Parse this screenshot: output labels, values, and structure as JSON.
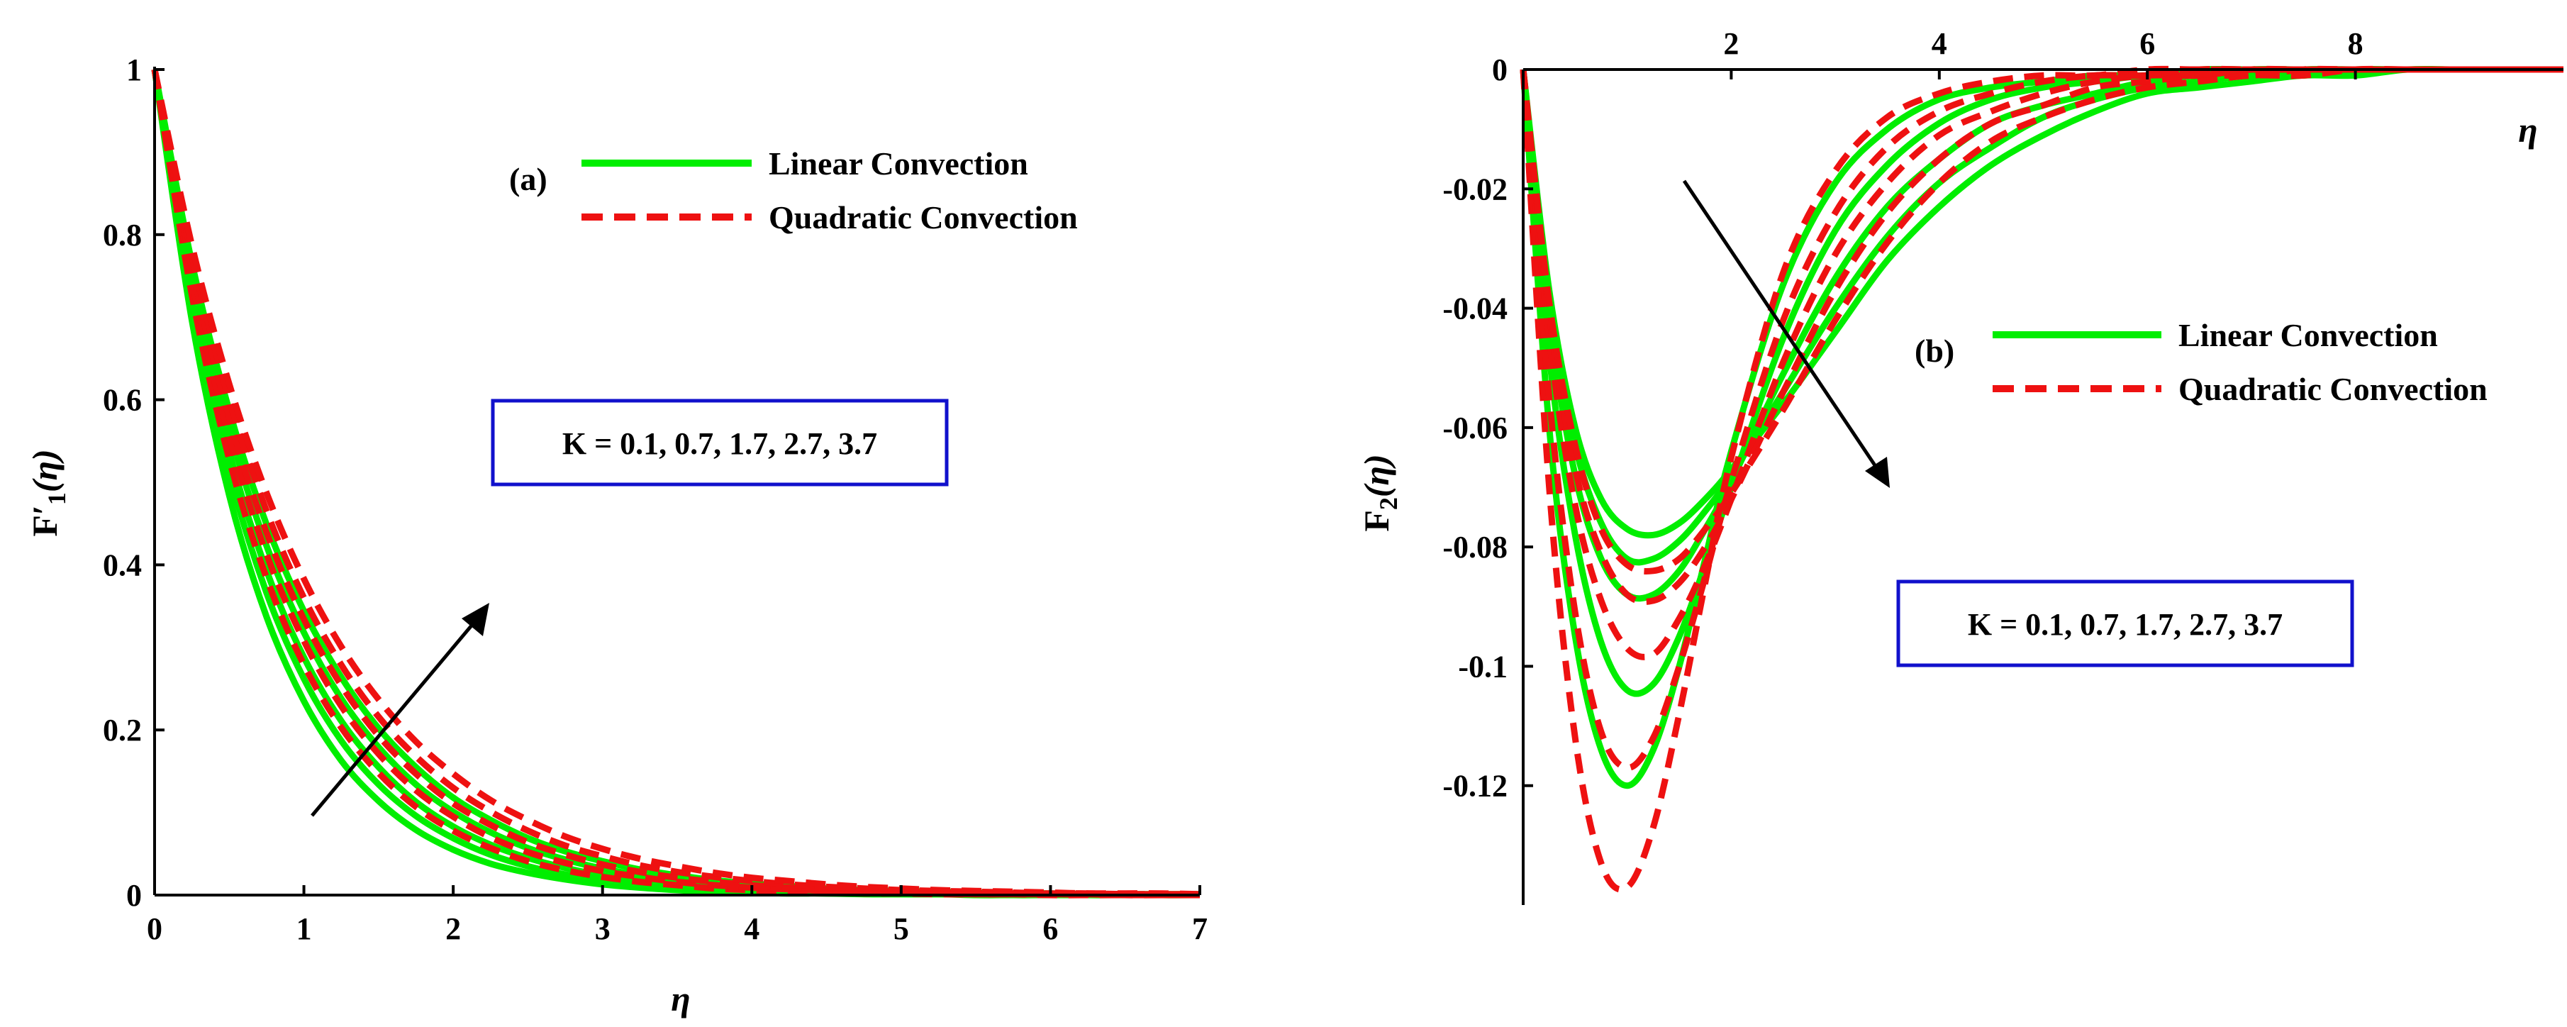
{
  "chart_data": [
    {
      "type": "line",
      "panel_label": "(a)",
      "xlabel": "η",
      "ylabel_main": "F",
      "ylabel_prime": "′",
      "ylabel_sub": "1",
      "ylabel_arg": "(η)",
      "xlim": [
        0,
        7
      ],
      "ylim": [
        0,
        1
      ],
      "xticks": [
        "0",
        "1",
        "2",
        "3",
        "4",
        "5",
        "6",
        "7"
      ],
      "yticks": [
        "0",
        "0.2",
        "0.4",
        "0.6",
        "0.8",
        "1"
      ],
      "legend": {
        "position": "top-right",
        "linear": "Linear Convection",
        "quadratic": "Quadratic Convection"
      },
      "annotation": "K = 0.1, 0.7, 1.7, 2.7, 3.7",
      "arrow": "increasing K",
      "x": [
        0,
        0.25,
        0.5,
        0.75,
        1,
        1.25,
        1.5,
        1.75,
        2,
        2.25,
        2.5,
        2.75,
        3,
        3.25,
        3.5,
        3.75,
        4,
        4.25,
        4.5,
        4.75,
        5,
        5.25,
        5.5,
        5.75,
        6,
        6.25,
        6.5,
        6.75,
        7
      ],
      "series": [
        {
          "name": "Linear Convection, K=0.1",
          "style": "linear",
          "values": [
            1,
            0.696,
            0.484,
            0.337,
            0.235,
            0.163,
            0.114,
            0.079,
            0.055,
            0.038,
            0.027,
            0.019,
            0.013,
            0.009,
            0.006,
            0.004,
            0.003,
            0.002,
            0.002,
            0.001,
            0.001,
            0.001,
            0,
            0,
            0,
            0,
            0,
            0,
            0
          ]
        },
        {
          "name": "Linear Convection, K=0.7",
          "style": "linear",
          "values": [
            1,
            0.715,
            0.512,
            0.366,
            0.262,
            0.187,
            0.134,
            0.096,
            0.069,
            0.049,
            0.035,
            0.025,
            0.018,
            0.013,
            0.009,
            0.007,
            0.005,
            0.003,
            0.002,
            0.002,
            0.001,
            0.001,
            0.001,
            0,
            0,
            0,
            0,
            0,
            0
          ]
        },
        {
          "name": "Linear Convection, K=1.7",
          "style": "linear",
          "values": [
            1,
            0.733,
            0.537,
            0.393,
            0.288,
            0.211,
            0.155,
            0.113,
            0.083,
            0.061,
            0.045,
            0.033,
            0.024,
            0.018,
            0.013,
            0.009,
            0.007,
            0.005,
            0.004,
            0.003,
            0.002,
            0.001,
            0.001,
            0.001,
            0.001,
            0,
            0,
            0,
            0
          ]
        },
        {
          "name": "Linear Convection, K=2.7",
          "style": "linear",
          "values": [
            1,
            0.751,
            0.564,
            0.423,
            0.318,
            0.238,
            0.179,
            0.134,
            0.101,
            0.076,
            0.057,
            0.043,
            0.032,
            0.024,
            0.018,
            0.014,
            0.01,
            0.008,
            0.006,
            0.004,
            0.003,
            0.002,
            0.002,
            0.001,
            0.001,
            0.001,
            0.001,
            0,
            0
          ]
        },
        {
          "name": "Linear Convection, K=3.7",
          "style": "linear",
          "values": [
            1,
            0.766,
            0.587,
            0.449,
            0.344,
            0.264,
            0.202,
            0.155,
            0.118,
            0.091,
            0.069,
            0.053,
            0.041,
            0.031,
            0.024,
            0.018,
            0.014,
            0.011,
            0.008,
            0.006,
            0.005,
            0.004,
            0.003,
            0.002,
            0.002,
            0.001,
            0.001,
            0.001,
            0.001
          ]
        },
        {
          "name": "Quadratic Convection, K=0.1",
          "style": "quadratic",
          "values": [
            1,
            0.727,
            0.528,
            0.384,
            0.279,
            0.203,
            0.148,
            0.107,
            0.078,
            0.057,
            0.041,
            0.03,
            0.022,
            0.016,
            0.012,
            0.008,
            0.006,
            0.004,
            0.003,
            0.002,
            0.002,
            0.001,
            0.001,
            0.001,
            0,
            0,
            0,
            0,
            0
          ]
        },
        {
          "name": "Quadratic Convection, K=0.7",
          "style": "quadratic",
          "values": [
            1,
            0.745,
            0.555,
            0.413,
            0.308,
            0.229,
            0.171,
            0.127,
            0.095,
            0.07,
            0.052,
            0.039,
            0.029,
            0.022,
            0.016,
            0.012,
            0.009,
            0.007,
            0.005,
            0.004,
            0.003,
            0.002,
            0.001,
            0.001,
            0.001,
            0.001,
            0,
            0,
            0
          ]
        },
        {
          "name": "Quadratic Convection, K=1.7",
          "style": "quadratic",
          "values": [
            1,
            0.76,
            0.578,
            0.439,
            0.334,
            0.254,
            0.193,
            0.147,
            0.111,
            0.085,
            0.064,
            0.049,
            0.037,
            0.028,
            0.021,
            0.016,
            0.012,
            0.009,
            0.007,
            0.005,
            0.004,
            0.003,
            0.002,
            0.002,
            0.001,
            0.001,
            0.001,
            0.001,
            0
          ]
        },
        {
          "name": "Quadratic Convection, K=2.7",
          "style": "quadratic",
          "values": [
            1,
            0.775,
            0.6,
            0.465,
            0.36,
            0.279,
            0.216,
            0.168,
            0.13,
            0.101,
            0.078,
            0.06,
            0.047,
            0.036,
            0.028,
            0.022,
            0.017,
            0.013,
            0.01,
            0.008,
            0.006,
            0.005,
            0.004,
            0.003,
            0.002,
            0.002,
            0.001,
            0.001,
            0.001
          ]
        },
        {
          "name": "Quadratic Convection, K=3.7",
          "style": "quadratic",
          "values": [
            1,
            0.787,
            0.619,
            0.487,
            0.383,
            0.301,
            0.237,
            0.186,
            0.147,
            0.115,
            0.091,
            0.071,
            0.056,
            0.044,
            0.035,
            0.027,
            0.021,
            0.017,
            0.013,
            0.01,
            0.008,
            0.006,
            0.005,
            0.004,
            0.003,
            0.002,
            0.002,
            0.002,
            0.001
          ]
        }
      ]
    },
    {
      "type": "line",
      "panel_label": "(b)",
      "xlabel": "η",
      "ylabel_main": "F",
      "ylabel_sub": "2",
      "ylabel_arg": "(η)",
      "xlim": [
        0,
        10
      ],
      "ylim": [
        -0.14,
        0
      ],
      "xticks": [
        "2",
        "4",
        "6",
        "8"
      ],
      "yticks": [
        "0",
        "-0.02",
        "-0.04",
        "-0.06",
        "-0.08",
        "-0.1",
        "-0.12"
      ],
      "legend": {
        "position": "right",
        "linear": "Linear Convection",
        "quadratic": "Quadratic Convection"
      },
      "annotation": "K = 0.1, 0.7, 1.7, 2.7, 3.7",
      "arrow": "increasing K",
      "x": [
        0,
        0.25,
        0.5,
        0.75,
        1,
        1.25,
        1.5,
        1.75,
        2,
        2.5,
        3,
        3.5,
        4,
        4.5,
        5,
        5.5,
        6,
        6.5,
        7,
        7.5,
        8,
        8.5,
        9,
        9.5,
        10
      ],
      "series": [
        {
          "name": "Linear Convection, K=0.1",
          "style": "linear",
          "values": [
            0,
            -0.06,
            -0.095,
            -0.114,
            -0.12,
            -0.114,
            -0.1,
            -0.082,
            -0.064,
            -0.036,
            -0.019,
            -0.01,
            -0.005,
            -0.003,
            -0.002,
            -0.001,
            -0.001,
            0,
            0,
            0,
            0,
            0,
            0,
            0,
            0
          ]
        },
        {
          "name": "Linear Convection, K=0.7",
          "style": "linear",
          "values": [
            0,
            -0.048,
            -0.078,
            -0.096,
            -0.104,
            -0.103,
            -0.095,
            -0.083,
            -0.07,
            -0.045,
            -0.027,
            -0.016,
            -0.009,
            -0.005,
            -0.003,
            -0.002,
            -0.001,
            -0.001,
            0,
            0,
            0,
            0,
            0,
            0,
            0
          ]
        },
        {
          "name": "Linear Convection, K=1.7",
          "style": "linear",
          "values": [
            0,
            -0.042,
            -0.068,
            -0.082,
            -0.088,
            -0.088,
            -0.084,
            -0.077,
            -0.069,
            -0.051,
            -0.035,
            -0.023,
            -0.015,
            -0.009,
            -0.006,
            -0.004,
            -0.002,
            -0.001,
            -0.001,
            0,
            0,
            0,
            0,
            0,
            0
          ]
        },
        {
          "name": "Linear Convection, K=2.7",
          "style": "linear",
          "values": [
            0,
            -0.039,
            -0.063,
            -0.076,
            -0.082,
            -0.082,
            -0.079,
            -0.074,
            -0.068,
            -0.054,
            -0.04,
            -0.028,
            -0.019,
            -0.013,
            -0.008,
            -0.005,
            -0.003,
            -0.002,
            -0.001,
            -0.001,
            0,
            0,
            0,
            0,
            0
          ]
        },
        {
          "name": "Linear Convection, K=3.7",
          "style": "linear",
          "values": [
            0,
            -0.037,
            -0.06,
            -0.072,
            -0.077,
            -0.078,
            -0.076,
            -0.072,
            -0.067,
            -0.056,
            -0.044,
            -0.032,
            -0.023,
            -0.016,
            -0.011,
            -0.007,
            -0.004,
            -0.003,
            -0.002,
            -0.001,
            -0.001,
            0,
            0,
            0,
            0
          ]
        },
        {
          "name": "Quadratic Convection, K=0.1",
          "style": "quadratic",
          "values": [
            0,
            -0.07,
            -0.112,
            -0.133,
            -0.137,
            -0.127,
            -0.108,
            -0.086,
            -0.065,
            -0.034,
            -0.017,
            -0.008,
            -0.004,
            -0.002,
            -0.001,
            -0.001,
            0,
            0,
            0,
            0,
            0,
            0,
            0,
            0,
            0
          ]
        },
        {
          "name": "Quadratic Convection, K=0.7",
          "style": "quadratic",
          "values": [
            0,
            -0.055,
            -0.091,
            -0.111,
            -0.117,
            -0.112,
            -0.1,
            -0.085,
            -0.069,
            -0.042,
            -0.024,
            -0.013,
            -0.007,
            -0.004,
            -0.002,
            -0.001,
            -0.001,
            0,
            0,
            0,
            0,
            0,
            0,
            0,
            0
          ]
        },
        {
          "name": "Quadratic Convection, K=1.7",
          "style": "quadratic",
          "values": [
            0,
            -0.045,
            -0.073,
            -0.089,
            -0.097,
            -0.098,
            -0.092,
            -0.083,
            -0.072,
            -0.049,
            -0.031,
            -0.019,
            -0.011,
            -0.007,
            -0.004,
            -0.002,
            -0.001,
            -0.001,
            0,
            0,
            0,
            0,
            0,
            0,
            0
          ]
        },
        {
          "name": "Quadratic Convection, K=2.7",
          "style": "quadratic",
          "values": [
            0,
            -0.041,
            -0.067,
            -0.081,
            -0.088,
            -0.089,
            -0.086,
            -0.08,
            -0.072,
            -0.054,
            -0.037,
            -0.024,
            -0.015,
            -0.009,
            -0.006,
            -0.003,
            -0.002,
            -0.001,
            -0.001,
            0,
            0,
            0,
            0,
            0,
            0
          ]
        },
        {
          "name": "Quadratic Convection, K=3.7",
          "style": "quadratic",
          "values": [
            0,
            -0.039,
            -0.063,
            -0.077,
            -0.083,
            -0.084,
            -0.082,
            -0.077,
            -0.071,
            -0.057,
            -0.042,
            -0.029,
            -0.019,
            -0.012,
            -0.008,
            -0.005,
            -0.003,
            -0.002,
            -0.001,
            -0.001,
            0,
            0,
            0,
            0,
            0
          ]
        }
      ]
    }
  ],
  "colors": {
    "linear": "#00ee00",
    "quadratic": "#ee1111",
    "annotation_border": "#1111cc",
    "axis": "#000000"
  }
}
